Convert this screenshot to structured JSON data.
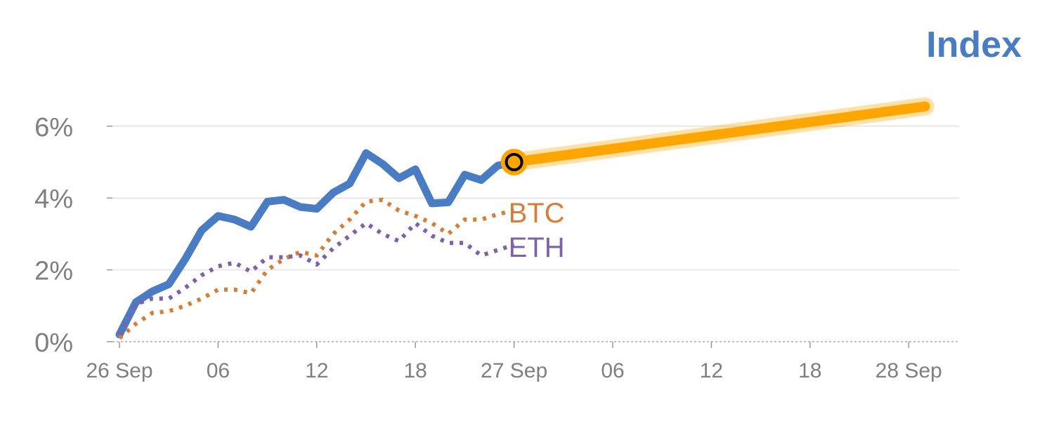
{
  "chart_data": {
    "type": "line",
    "title": "Index",
    "title_color": "#4a7cc4",
    "x_ticks": [
      "26 Sep",
      "06",
      "12",
      "18",
      "27 Sep",
      "06",
      "12",
      "18",
      "28 Sep"
    ],
    "y_ticks": [
      "0%",
      "2%",
      "4%",
      "6%"
    ],
    "ylim": [
      0,
      7
    ],
    "grid": true,
    "series": [
      {
        "name": "",
        "style": "solid",
        "color": "#4a7cc4",
        "x": [
          1,
          2,
          3,
          4,
          5,
          6,
          7,
          8,
          9,
          10,
          11,
          12,
          13,
          14,
          15,
          16,
          17,
          18,
          19,
          20,
          21,
          22,
          23,
          24,
          25
        ],
        "y": [
          0.2,
          1.1,
          1.4,
          1.6,
          2.3,
          3.1,
          3.5,
          3.4,
          3.2,
          3.9,
          3.95,
          3.75,
          3.7,
          4.15,
          4.4,
          5.25,
          4.95,
          4.55,
          4.8,
          3.85,
          3.88,
          4.65,
          4.5,
          4.9,
          5.0
        ]
      },
      {
        "name": "BTC",
        "style": "dotted",
        "color": "#d47e3a",
        "x": [
          1,
          2,
          3,
          4,
          5,
          6,
          7,
          8,
          9,
          10,
          11,
          12,
          13,
          14,
          15,
          16,
          17,
          18,
          19,
          20,
          21,
          22,
          23,
          24,
          25
        ],
        "y": [
          0.1,
          0.5,
          0.8,
          0.85,
          1.0,
          1.2,
          1.45,
          1.45,
          1.35,
          2.0,
          2.3,
          2.5,
          2.4,
          3.0,
          3.4,
          3.9,
          3.95,
          3.65,
          3.5,
          3.3,
          3.0,
          3.4,
          3.4,
          3.55,
          3.65
        ]
      },
      {
        "name": "ETH",
        "style": "dotted",
        "color": "#7d62a8",
        "x": [
          1,
          2,
          3,
          4,
          5,
          6,
          7,
          8,
          9,
          10,
          11,
          12,
          13,
          14,
          15,
          16,
          17,
          18,
          19,
          20,
          21,
          22,
          23,
          24,
          25
        ],
        "y": [
          0.2,
          1.05,
          1.2,
          1.2,
          1.5,
          1.85,
          2.1,
          2.2,
          1.95,
          2.35,
          2.35,
          2.4,
          2.15,
          2.6,
          2.95,
          3.3,
          3.0,
          2.8,
          3.3,
          2.95,
          2.75,
          2.75,
          2.4,
          2.55,
          2.7
        ]
      },
      {
        "name": "",
        "style": "forecast",
        "color": "#ffa500",
        "x": [
          25,
          50
        ],
        "y": [
          5.0,
          6.55
        ]
      }
    ],
    "marker": {
      "x": 25,
      "y": 5.0
    }
  }
}
